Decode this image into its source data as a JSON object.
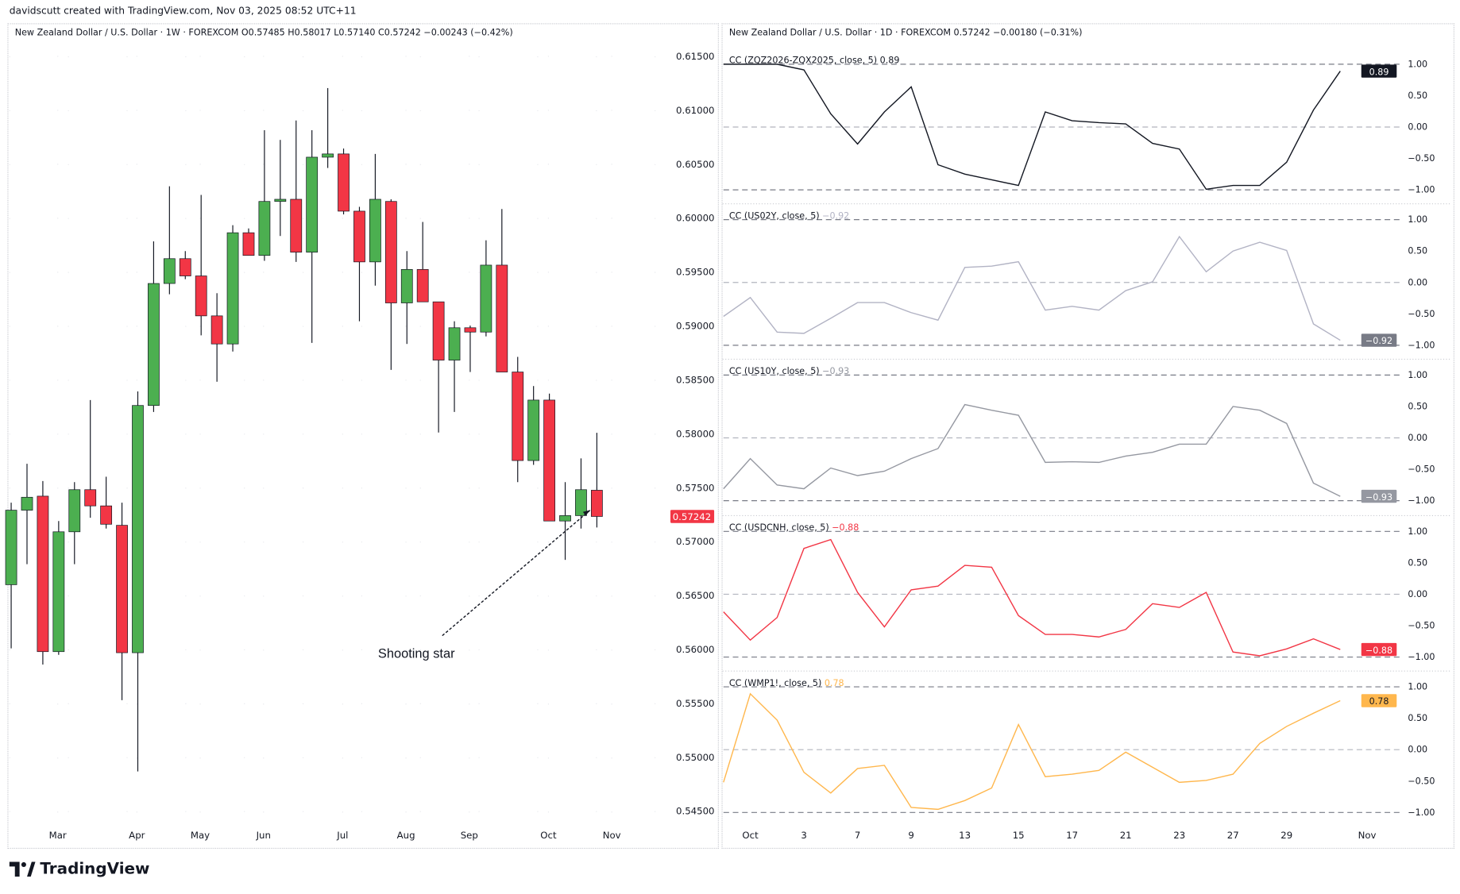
{
  "credit": "davidscutt created with TradingView.com, Nov 03, 2025 08:52 UTC+11",
  "left_chart": {
    "legend": "New Zealand Dollar / U.S. Dollar · 1W · FOREXCOM  O0.57485  H0.58017  L0.57140  C0.57242  −0.00243 (−0.42%)",
    "price_axis": [
      "0.61500",
      "0.61000",
      "0.60500",
      "0.60000",
      "0.59500",
      "0.59000",
      "0.58500",
      "0.58000",
      "0.57500",
      "0.57000",
      "0.56500",
      "0.56000",
      "0.55500",
      "0.55000",
      "0.54500"
    ],
    "current_price": "0.57242",
    "time_labels": [
      "Mar",
      "Apr",
      "May",
      "Jun",
      "Jul",
      "Aug",
      "Sep",
      "Oct",
      "Nov"
    ],
    "annotation": "Shooting star",
    "colors": {
      "up": "#4caf50",
      "down": "#f23645",
      "wick": "#131722",
      "price_tag": "#f23645"
    }
  },
  "chart_data": [
    {
      "type": "candlestick",
      "timeframe": "1W",
      "ylim": [
        0.545,
        0.615
      ],
      "ohlc": [
        [
          0.5661,
          0.5737,
          0.5602,
          0.573
        ],
        [
          0.573,
          0.5773,
          0.568,
          0.5742
        ],
        [
          0.5743,
          0.5757,
          0.5587,
          0.5599
        ],
        [
          0.5599,
          0.572,
          0.5596,
          0.571
        ],
        [
          0.571,
          0.5756,
          0.568,
          0.5749
        ],
        [
          0.5749,
          0.5832,
          0.5723,
          0.5734
        ],
        [
          0.5734,
          0.5761,
          0.5713,
          0.5717
        ],
        [
          0.5716,
          0.5737,
          0.5554,
          0.5598
        ],
        [
          0.5598,
          0.584,
          0.5488,
          0.5827
        ],
        [
          0.5827,
          0.5979,
          0.5821,
          0.594
        ],
        [
          0.594,
          0.603,
          0.593,
          0.5963
        ],
        [
          0.5963,
          0.597,
          0.5944,
          0.5947
        ],
        [
          0.5947,
          0.6022,
          0.5892,
          0.591
        ],
        [
          0.591,
          0.5931,
          0.5849,
          0.5884
        ],
        [
          0.5884,
          0.5994,
          0.5877,
          0.5987
        ],
        [
          0.5987,
          0.5991,
          0.5966,
          0.5966
        ],
        [
          0.5966,
          0.6082,
          0.5961,
          0.6016
        ],
        [
          0.6016,
          0.6073,
          0.5984,
          0.6018
        ],
        [
          0.6018,
          0.6091,
          0.596,
          0.5969
        ],
        [
          0.5969,
          0.6082,
          0.5885,
          0.6057
        ],
        [
          0.6057,
          0.6121,
          0.6047,
          0.606
        ],
        [
          0.606,
          0.6065,
          0.6004,
          0.6007
        ],
        [
          0.6007,
          0.6011,
          0.5905,
          0.596
        ],
        [
          0.596,
          0.606,
          0.5938,
          0.6018
        ],
        [
          0.6016,
          0.6018,
          0.586,
          0.5922
        ],
        [
          0.5922,
          0.597,
          0.5884,
          0.5953
        ],
        [
          0.5953,
          0.5997,
          0.5923,
          0.5923
        ],
        [
          0.5923,
          0.5923,
          0.5802,
          0.5869
        ],
        [
          0.5869,
          0.5905,
          0.5821,
          0.5899
        ],
        [
          0.5899,
          0.5901,
          0.5858,
          0.5895
        ],
        [
          0.5895,
          0.598,
          0.5891,
          0.5957
        ],
        [
          0.5957,
          0.6009,
          0.5858,
          0.5858
        ],
        [
          0.5858,
          0.5872,
          0.5756,
          0.5776
        ],
        [
          0.5776,
          0.5845,
          0.5772,
          0.5832
        ],
        [
          0.5832,
          0.5838,
          0.572,
          0.572
        ],
        [
          0.572,
          0.5756,
          0.5684,
          0.5725
        ],
        [
          0.5725,
          0.5778,
          0.5713,
          0.5749
        ],
        [
          0.57485,
          0.58017,
          0.5714,
          0.57242
        ]
      ]
    },
    {
      "type": "line",
      "legend": "New Zealand Dollar / U.S. Dollar · 1D · FOREXCOM  0.57242  −0.00180 (−0.31%)",
      "x_labels": [
        "Oct",
        "3",
        "7",
        "9",
        "13",
        "15",
        "17",
        "21",
        "23",
        "27",
        "29",
        "Nov"
      ],
      "ylim": [
        -1,
        1
      ],
      "y_ticks": [
        "1.00",
        "0.50",
        "0.00",
        "−0.50",
        "−1.00"
      ],
      "series": [
        {
          "name": "CC (ZQZ2026-ZQX2025, close, 5)",
          "last": "0.89",
          "color": "#131722",
          "tag_bg": "#131722",
          "values": [
            1.0,
            1.0,
            1.0,
            0.91,
            0.21,
            -0.27,
            0.24,
            0.64,
            -0.6,
            -0.75,
            -0.84,
            -0.93,
            0.24,
            0.1,
            0.07,
            0.05,
            -0.26,
            -0.35,
            -0.99,
            -0.93,
            -0.93,
            -0.56,
            0.27,
            0.89
          ]
        },
        {
          "name": "CC (US02Y, close, 5)",
          "last": "−0.92",
          "color": "#b2b3c4",
          "tag_bg": "#787b86",
          "values": [
            -0.54,
            -0.24,
            -0.79,
            -0.81,
            -0.57,
            -0.32,
            -0.32,
            -0.48,
            -0.6,
            0.24,
            0.26,
            0.33,
            -0.44,
            -0.38,
            -0.44,
            -0.13,
            0.01,
            0.73,
            0.17,
            0.5,
            0.64,
            0.51,
            -0.66,
            -0.92
          ]
        },
        {
          "name": "CC (US10Y, close, 5)",
          "last": "−0.93",
          "color": "#9598a1",
          "tag_bg": "#9598a1",
          "values": [
            -0.81,
            -0.33,
            -0.75,
            -0.81,
            -0.48,
            -0.6,
            -0.53,
            -0.33,
            -0.17,
            0.53,
            0.44,
            0.36,
            -0.39,
            -0.38,
            -0.39,
            -0.29,
            -0.23,
            -0.1,
            -0.1,
            0.5,
            0.44,
            0.23,
            -0.72,
            -0.93
          ]
        },
        {
          "name": "CC (USDCNH, close, 5)",
          "last": "−0.88",
          "color": "#f23645",
          "tag_bg": "#f23645",
          "values": [
            -0.28,
            -0.73,
            -0.37,
            0.73,
            0.87,
            0.03,
            -0.52,
            0.07,
            0.13,
            0.46,
            0.43,
            -0.34,
            -0.64,
            -0.64,
            -0.68,
            -0.56,
            -0.15,
            -0.21,
            0.03,
            -0.92,
            -0.98,
            -0.87,
            -0.71,
            -0.88
          ]
        },
        {
          "name": "CC (WMP1!, close, 5)",
          "last": "0.78",
          "color": "#ffb74d",
          "tag_bg": "#ffb74d",
          "values": [
            -0.52,
            0.89,
            0.47,
            -0.36,
            -0.69,
            -0.3,
            -0.25,
            -0.92,
            -0.95,
            -0.81,
            -0.61,
            0.4,
            -0.43,
            -0.39,
            -0.33,
            -0.04,
            -0.28,
            -0.52,
            -0.49,
            -0.39,
            0.1,
            0.37,
            0.58,
            0.78
          ]
        }
      ]
    }
  ],
  "logo": "TradingView"
}
